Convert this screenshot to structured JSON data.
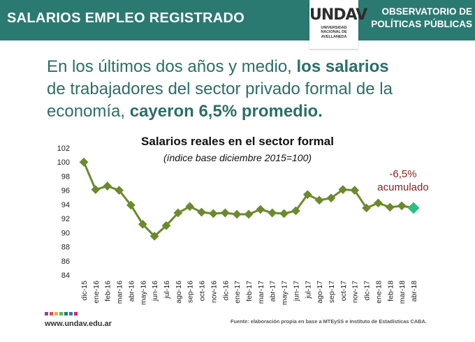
{
  "header": {
    "title": "SALARIOS EMPLEO REGISTRADO",
    "logo_mark": "UNDAV",
    "logo_subtitle": [
      "UNIVERSIDAD",
      "NACIONAL DE",
      "AVELLANEDA"
    ],
    "observatorio": [
      "OBSERVATORIO DE",
      "POLÍTICAS PÚBLICAS"
    ]
  },
  "headline": {
    "part1": "En los últimos dos años y medio, ",
    "part2_bold": "los salarios",
    "part3": "de trabajadores del sector privado formal de la economía, ",
    "part4_bold": "cayeron 6,5% promedio."
  },
  "footer": {
    "url": "www.undav.edu.ar",
    "source": "Fuente: elaboración propia en base a MTEySS e Instituto de Estadísticas CABA.",
    "dot_colors": [
      "#8e44ad",
      "#d9534f",
      "#f0ad4e",
      "#5cb85c",
      "#2b7a72",
      "#337ab7",
      "#e91e63"
    ]
  },
  "colors": {
    "header_bg": "#2b7a72",
    "line": "#6b8a2c",
    "marker": "#6b8a2c",
    "last_marker": "#2ebf7f",
    "annotation": "#8b1f1f"
  },
  "chart_data": {
    "type": "line",
    "title": "Salarios reales en el sector formal",
    "subtitle": "(índice base diciembre 2015=100)",
    "categories": [
      "dic-15",
      "ene-16",
      "feb-16",
      "mar-16",
      "abr-16",
      "may-16",
      "jun-16",
      "jul-16",
      "ago-16",
      "sep-16",
      "oct-16",
      "nov-16",
      "dic-16",
      "ene-17",
      "feb-17",
      "mar-17",
      "abr-17",
      "may-17",
      "jun-17",
      "jul-17",
      "ago-17",
      "sep-17",
      "oct-17",
      "nov-17",
      "dic-17",
      "ene-18",
      "feb-18",
      "mar-18",
      "abr-18"
    ],
    "series": [
      {
        "values": [
          100,
          96.1,
          96.6,
          96.0,
          93.9,
          91.2,
          89.5,
          91.0,
          92.8,
          93.7,
          92.9,
          92.7,
          92.8,
          92.6,
          92.6,
          93.3,
          92.8,
          92.7,
          93.1,
          95.4,
          94.6,
          94.9,
          96.1,
          96.0,
          93.5,
          94.2,
          93.6,
          93.8,
          93.5
        ]
      }
    ],
    "ylim": [
      84,
      102
    ],
    "yticks": [
      84,
      86,
      88,
      90,
      92,
      94,
      96,
      98,
      100,
      102
    ],
    "grid": false,
    "annotation": [
      "-6,5%",
      "acumulado"
    ]
  }
}
